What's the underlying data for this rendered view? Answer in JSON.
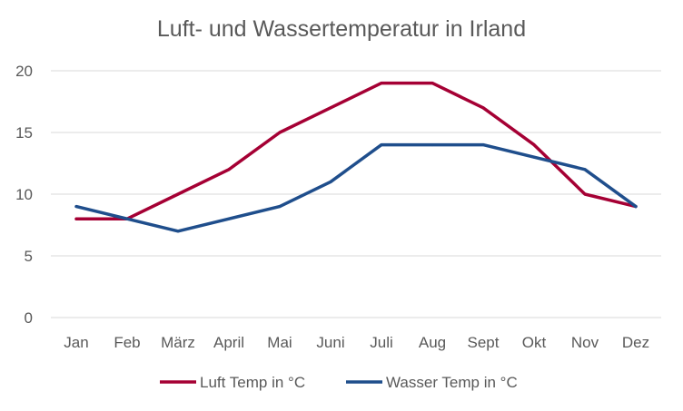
{
  "chart_data": {
    "type": "line",
    "title": "Luft- und Wassertemperatur in Irland",
    "categories": [
      "Jan",
      "Feb",
      "März",
      "April",
      "Mai",
      "Juni",
      "Juli",
      "Aug",
      "Sept",
      "Okt",
      "Nov",
      "Dez"
    ],
    "series": [
      {
        "name": "Luft Temp in °C",
        "color": "#A50034",
        "values": [
          8,
          8,
          10,
          12,
          15,
          17,
          19,
          19,
          17,
          14,
          10,
          9
        ]
      },
      {
        "name": "Wasser Temp in °C",
        "color": "#1F4E8C",
        "values": [
          9,
          8,
          7,
          8,
          9,
          11,
          14,
          14,
          14,
          13,
          12,
          9
        ]
      }
    ],
    "ylim": [
      0,
      20
    ],
    "yticks": [
      0,
      5,
      10,
      15,
      20
    ],
    "grid": true,
    "legend": "bottom"
  }
}
